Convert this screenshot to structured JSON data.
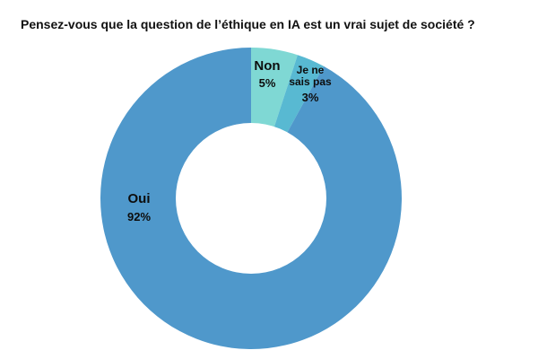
{
  "chart_data": {
    "type": "pie",
    "title": "Pensez-vous que la question de l’éthique en IA est un vrai sujet de société ?",
    "donut": true,
    "slices": [
      {
        "label": "Non",
        "value": 5,
        "value_label": "5%",
        "color": "#7fd8d4"
      },
      {
        "label": "Je ne sais pas",
        "label_lines": [
          "Je ne",
          "sais pas"
        ],
        "value": 3,
        "value_label": "3%",
        "color": "#58b9d2"
      },
      {
        "label": "Oui",
        "value": 92,
        "value_label": "92%",
        "color": "#4f98cb"
      }
    ]
  }
}
